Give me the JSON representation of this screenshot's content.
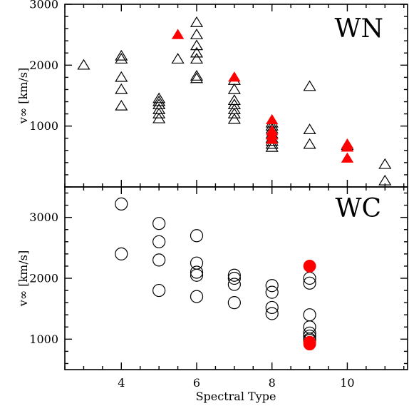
{
  "chart_data": [
    {
      "type": "scatter",
      "panel_label": "WN",
      "marker": "triangle",
      "ylabel": "v∞ [km/s]",
      "xlabel": "",
      "xlim": [
        2.5,
        11.6
      ],
      "ylim": [
        0,
        3000
      ],
      "y_ticks": [
        1000,
        2000,
        3000
      ],
      "x_ticks": [
        4,
        6,
        8,
        10
      ],
      "series": [
        {
          "color": "#000000",
          "filled": false,
          "points": [
            [
              3,
              2000
            ],
            [
              4,
              2150
            ],
            [
              4,
              2100
            ],
            [
              4,
              1800
            ],
            [
              4,
              1600
            ],
            [
              4,
              1330
            ],
            [
              5,
              1450
            ],
            [
              5,
              1400
            ],
            [
              5,
              1350
            ],
            [
              5,
              1270
            ],
            [
              5,
              1200
            ],
            [
              5,
              1120
            ],
            [
              5.5,
              2100
            ],
            [
              6,
              2700
            ],
            [
              6,
              2500
            ],
            [
              6,
              2320
            ],
            [
              6,
              2200
            ],
            [
              6,
              2100
            ],
            [
              6,
              1820
            ],
            [
              6,
              1780
            ],
            [
              7,
              1750
            ],
            [
              7,
              1600
            ],
            [
              7,
              1420
            ],
            [
              7,
              1350
            ],
            [
              7,
              1270
            ],
            [
              7,
              1200
            ],
            [
              7,
              1110
            ],
            [
              8,
              1050
            ],
            [
              8,
              1000
            ],
            [
              8,
              950
            ],
            [
              8,
              870
            ],
            [
              8,
              800
            ],
            [
              8,
              750
            ],
            [
              8,
              700
            ],
            [
              8,
              650
            ],
            [
              9,
              1650
            ],
            [
              9,
              940
            ],
            [
              9,
              700
            ],
            [
              10,
              680
            ],
            [
              11,
              370
            ],
            [
              11,
              100
            ]
          ]
        },
        {
          "color": "#ff0000",
          "filled": true,
          "points": [
            [
              5.5,
              2500
            ],
            [
              7,
              1800
            ],
            [
              8,
              1100
            ],
            [
              8,
              920
            ],
            [
              8,
              850
            ],
            [
              8,
              780
            ],
            [
              10,
              700
            ],
            [
              10,
              650
            ],
            [
              10,
              470
            ]
          ]
        }
      ]
    },
    {
      "type": "scatter",
      "panel_label": "WC",
      "marker": "circle",
      "ylabel": "v∞ [km/s]",
      "xlabel": "Spectral Type",
      "xlim": [
        2.5,
        11.6
      ],
      "ylim": [
        500,
        3500
      ],
      "y_ticks": [
        1000,
        2000,
        3000
      ],
      "x_ticks": [
        4,
        6,
        8,
        10
      ],
      "series": [
        {
          "color": "#000000",
          "filled": false,
          "points": [
            [
              4,
              3220
            ],
            [
              4,
              2400
            ],
            [
              5,
              2900
            ],
            [
              5,
              2600
            ],
            [
              5,
              2300
            ],
            [
              5,
              1800
            ],
            [
              6,
              2700
            ],
            [
              6,
              2250
            ],
            [
              6,
              2100
            ],
            [
              6,
              2050
            ],
            [
              6,
              1700
            ],
            [
              7,
              2050
            ],
            [
              7,
              2000
            ],
            [
              7,
              1900
            ],
            [
              7,
              1600
            ],
            [
              8,
              1880
            ],
            [
              8,
              1770
            ],
            [
              8,
              1520
            ],
            [
              8,
              1420
            ],
            [
              9,
              2000
            ],
            [
              9,
              1920
            ],
            [
              9,
              1400
            ],
            [
              9,
              1200
            ],
            [
              9,
              1100
            ],
            [
              9,
              1050
            ],
            [
              9,
              1000
            ],
            [
              9,
              980
            ]
          ]
        },
        {
          "color": "#ff0000",
          "filled": true,
          "points": [
            [
              9,
              2200
            ],
            [
              9,
              950
            ],
            [
              9,
              920
            ]
          ]
        }
      ]
    }
  ]
}
